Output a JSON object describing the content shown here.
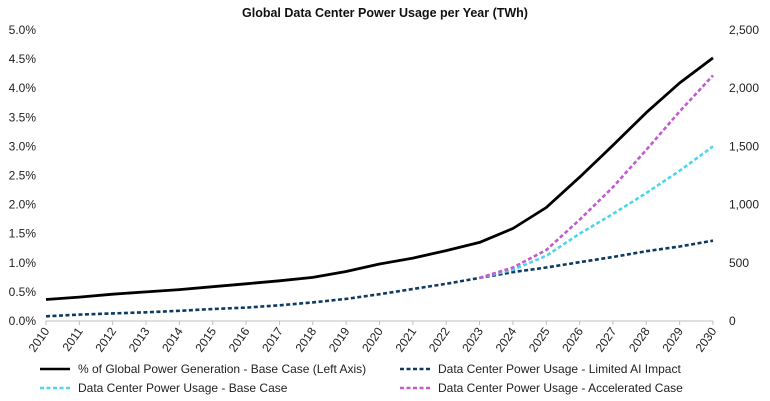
{
  "chart_data": {
    "type": "line",
    "title": "Global Data Center Power Usage per Year (TWh)",
    "x": [
      "2010",
      "2011",
      "2012",
      "2013",
      "2014",
      "2015",
      "2016",
      "2017",
      "2018",
      "2019",
      "2020",
      "2021",
      "2022",
      "2023",
      "2024",
      "2025",
      "2026",
      "2027",
      "2028",
      "2029",
      "2030"
    ],
    "left_axis": {
      "ylim": [
        0,
        5.0
      ],
      "ticks": [
        "0.0%",
        "0.5%",
        "1.0%",
        "1.5%",
        "2.0%",
        "2.5%",
        "3.0%",
        "3.5%",
        "4.0%",
        "4.5%",
        "5.0%"
      ]
    },
    "right_axis": {
      "ylim": [
        0,
        2500
      ],
      "ticks": [
        "0",
        "500",
        "1,000",
        "1,500",
        "2,000",
        "2,500"
      ]
    },
    "grid": false,
    "legend_position": "bottom",
    "series": [
      {
        "name": "% of Global Power Generation - Base Case (Left Axis)",
        "axis": "left",
        "color": "#000000",
        "style": "solid",
        "values": [
          0.37,
          0.41,
          0.46,
          0.5,
          0.54,
          0.59,
          0.64,
          0.69,
          0.75,
          0.85,
          0.98,
          1.08,
          1.21,
          1.35,
          1.59,
          1.95,
          2.47,
          3.02,
          3.58,
          4.09,
          4.52
        ]
      },
      {
        "name": "Data Center Power Usage - Limited AI Impact",
        "axis": "right",
        "color": "#0d3a63",
        "style": "dashed",
        "values": [
          40,
          55,
          65,
          75,
          88,
          103,
          115,
          135,
          160,
          190,
          230,
          275,
          320,
          370,
          420,
          460,
          505,
          550,
          600,
          640,
          690
        ]
      },
      {
        "name": "Data Center Power Usage - Base Case",
        "axis": "right",
        "color": "#4dd6ea",
        "style": "dashed",
        "values": [
          null,
          null,
          null,
          null,
          null,
          null,
          null,
          null,
          null,
          null,
          null,
          null,
          null,
          370,
          440,
          560,
          750,
          920,
          1100,
          1290,
          1500
        ]
      },
      {
        "name": "Data Center Power Usage - Accelerated Case",
        "axis": "right",
        "color": "#c25bd0",
        "style": "dashed",
        "values": [
          null,
          null,
          null,
          null,
          null,
          null,
          null,
          null,
          null,
          null,
          null,
          null,
          null,
          370,
          460,
          610,
          870,
          1150,
          1470,
          1800,
          2110
        ]
      }
    ]
  }
}
